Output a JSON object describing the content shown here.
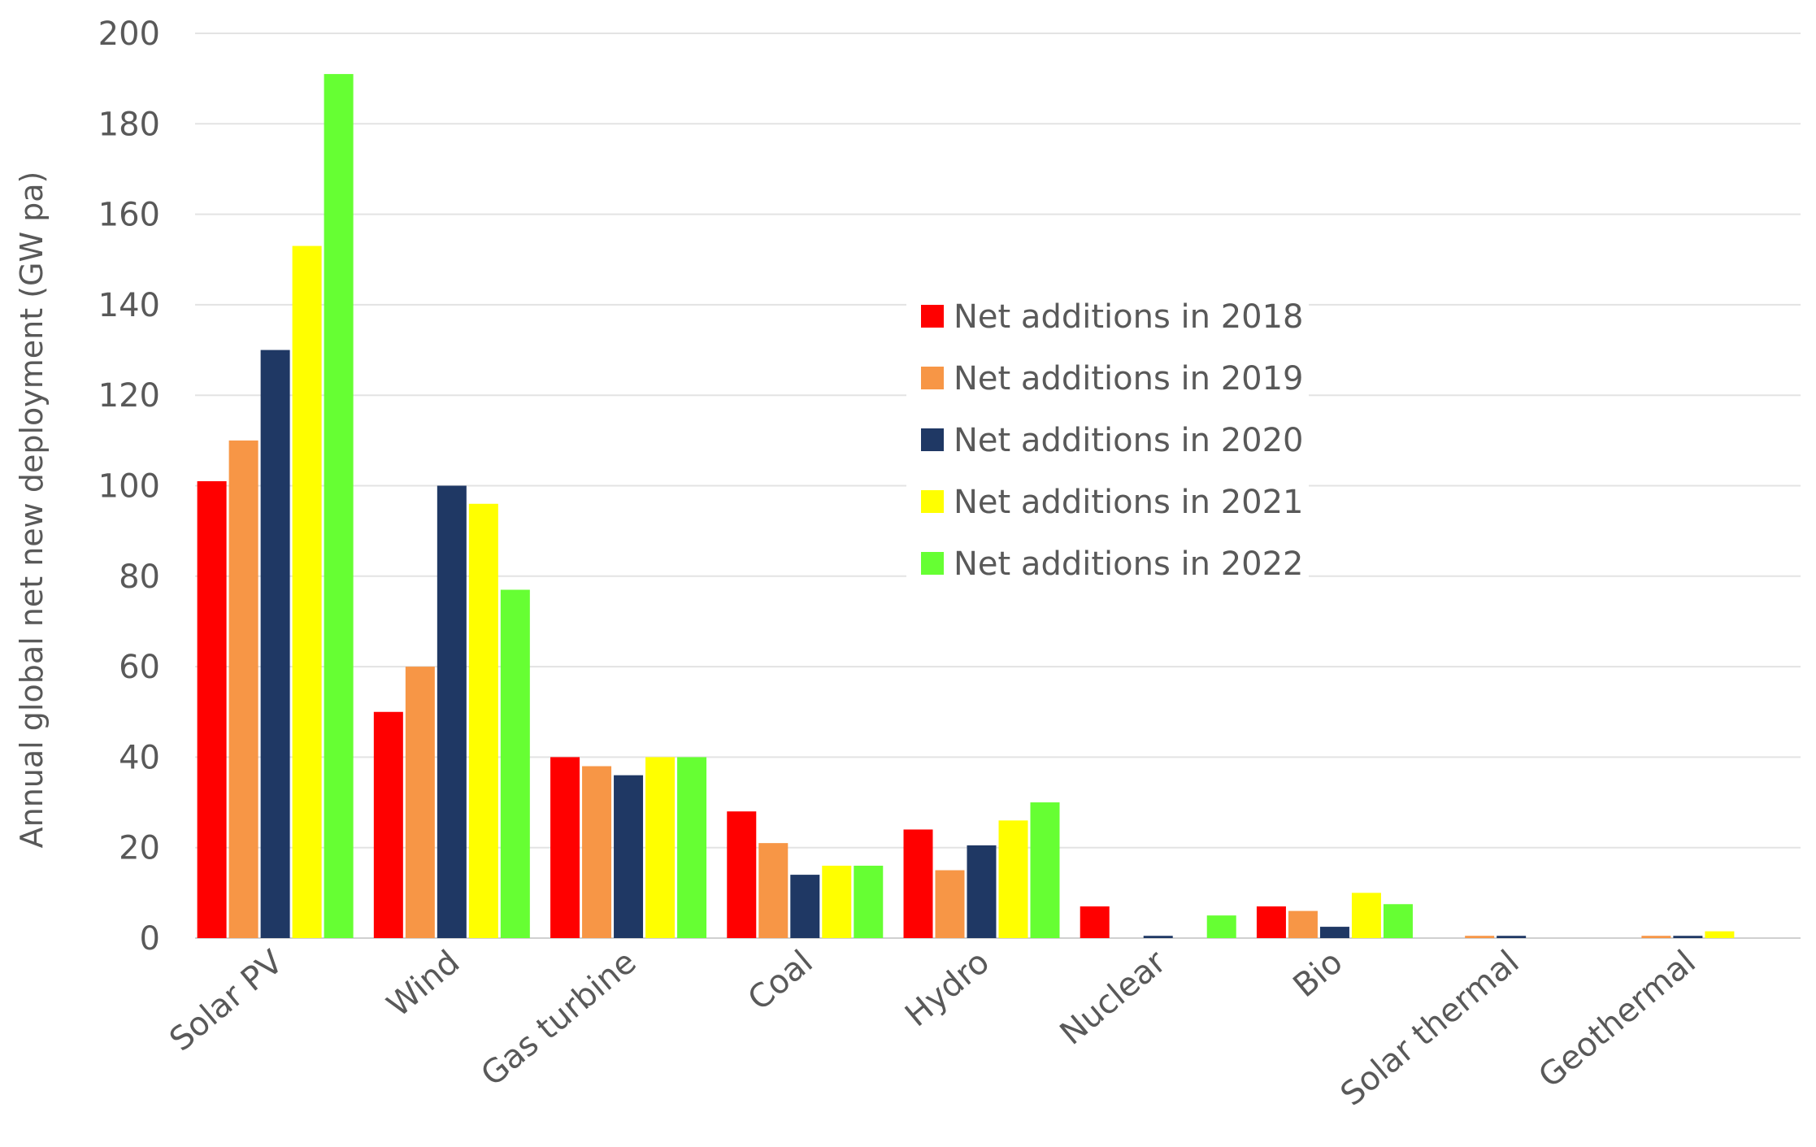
{
  "chart_data": {
    "type": "bar",
    "title": "",
    "xlabel": "",
    "ylabel": "Annual global net new deployment (GW pa)",
    "ylim": [
      0,
      200
    ],
    "yticks": [
      "0",
      "20",
      "40",
      "60",
      "80",
      "100",
      "120",
      "140",
      "160",
      "180",
      "200"
    ],
    "grid": true,
    "legend_position": "center-right",
    "categories": [
      "Solar PV",
      "Wind",
      "Gas turbine",
      "Coal",
      "Hydro",
      "Nuclear",
      "Bio",
      "Solar thermal",
      "Geothermal"
    ],
    "series": [
      {
        "name": "Net additions in 2018",
        "color": "#ff0000",
        "values": [
          101,
          50,
          40,
          28,
          24,
          7,
          7,
          0,
          0
        ]
      },
      {
        "name": "Net additions in 2019",
        "color": "#f79646",
        "values": [
          110,
          60,
          38,
          21,
          15,
          0,
          6,
          0.5,
          0.5
        ]
      },
      {
        "name": "Net additions in 2020",
        "color": "#1f3864",
        "values": [
          130,
          100,
          36,
          14,
          20.5,
          0.5,
          2.5,
          0.5,
          0.5
        ]
      },
      {
        "name": "Net additions in 2021",
        "color": "#ffff00",
        "values": [
          153,
          96,
          40,
          16,
          26,
          0,
          10,
          0,
          1.5
        ]
      },
      {
        "name": "Net additions in 2022",
        "color": "#66ff33",
        "values": [
          191,
          77,
          40,
          16,
          30,
          5,
          7.5,
          0,
          0
        ]
      }
    ]
  }
}
